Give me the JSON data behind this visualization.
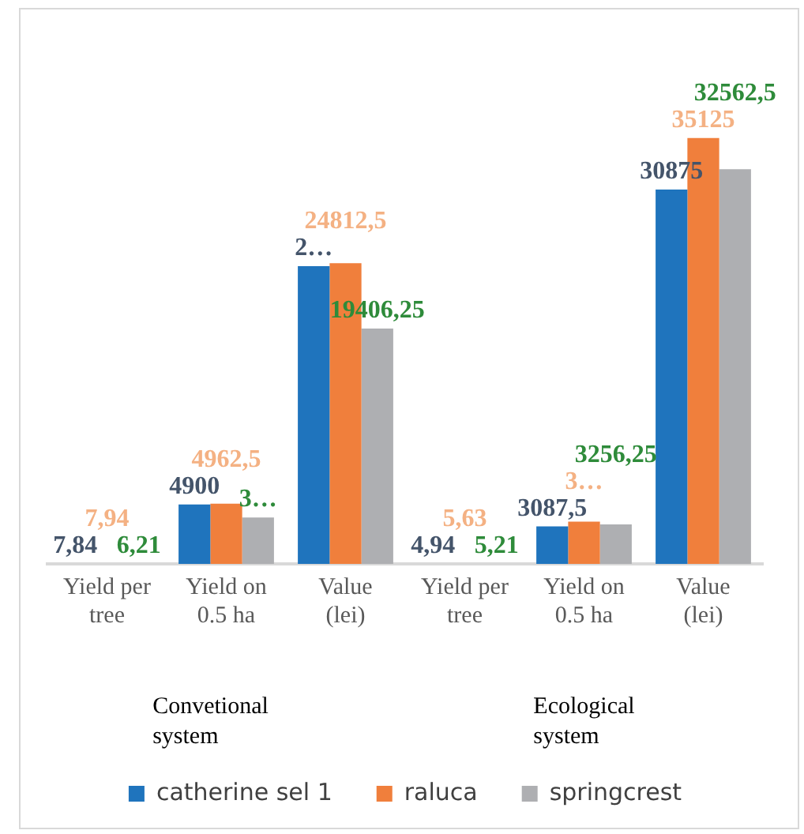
{
  "chart_data": {
    "type": "bar",
    "categories": [
      "Yield per tree",
      "Yield on 0.5 ha",
      "Value (lei)",
      "Yield per tree",
      "Yield on 0.5 ha",
      "Value (lei)"
    ],
    "series": [
      {
        "name": "catherine sel 1",
        "color": "#1f74bd",
        "values": [
          7.84,
          4900,
          24560,
          4.94,
          3087.5,
          30875
        ],
        "value_labels": [
          "7,84",
          "4900",
          "2…",
          "4,94",
          "3087,5",
          "30875"
        ]
      },
      {
        "name": "raluca",
        "color": "#f07f3c",
        "values": [
          7.94,
          4962.5,
          24812.5,
          5.63,
          3480,
          35125
        ],
        "value_labels": [
          "7,94",
          "4962,5",
          "24812,5",
          "5,63",
          "3…",
          "35125"
        ]
      },
      {
        "name": "springcrest",
        "color": "#aeafb2",
        "values": [
          6.21,
          3830,
          19406.25,
          5.21,
          3256.25,
          32562.5
        ],
        "value_labels": [
          "6,21",
          "3…",
          "19406,25",
          "5,21",
          "3256,25",
          "32562,5"
        ]
      }
    ],
    "annotations": [
      "Convetional system",
      "Ecological system"
    ],
    "legend": "bottom",
    "grid": false
  }
}
